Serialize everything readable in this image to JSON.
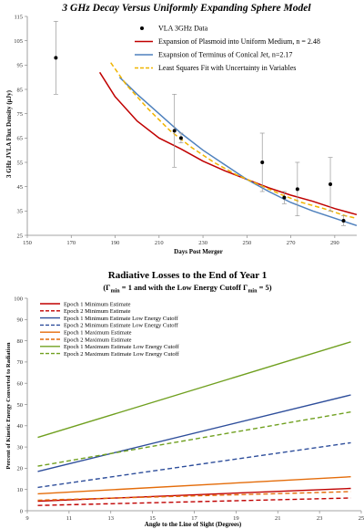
{
  "chart_data": [
    {
      "type": "scatter",
      "title": "3 GHz Decay Versus Uniformly Expanding Sphere Model",
      "xlabel": "Days Post Merger",
      "ylabel": "3 GHz JVLA Flux Density (μJy)",
      "xlim": [
        150,
        300
      ],
      "ylim": [
        25,
        115
      ],
      "xticks": [
        150,
        170,
        190,
        210,
        230,
        250,
        270,
        290
      ],
      "yticks": [
        25,
        35,
        45,
        55,
        65,
        75,
        85,
        95,
        105,
        115
      ],
      "grid": false,
      "legend_position": "top-right",
      "data_series": {
        "name": "VLA 3GHz Data",
        "points": [
          {
            "x": 163,
            "y": 98,
            "err": 15
          },
          {
            "x": 217,
            "y": 68,
            "err": 15
          },
          {
            "x": 220,
            "y": 65,
            "err": 2
          },
          {
            "x": 257,
            "y": 55,
            "err": 12
          },
          {
            "x": 267,
            "y": 40.5,
            "err": 2.5
          },
          {
            "x": 273,
            "y": 44,
            "err": 11
          },
          {
            "x": 288,
            "y": 46,
            "err": 11
          },
          {
            "x": 294,
            "y": 31,
            "err": 2
          }
        ],
        "color": "#000000"
      },
      "series": [
        {
          "name": "Expansion of Plasmoid into Uniform Medium, n  = 2.48",
          "color": "#c00000",
          "dash": "solid",
          "x": [
            183,
            190,
            200,
            210,
            220,
            230,
            240,
            250,
            260,
            270,
            280,
            290,
            300
          ],
          "y": [
            92,
            82,
            72,
            65,
            60.5,
            55.5,
            51.5,
            48,
            44.5,
            41.5,
            39,
            36,
            33.5
          ]
        },
        {
          "name": "Exapnsion of Terminus of Conical Jet, n=2.17",
          "color": "#4f81bd",
          "dash": "solid",
          "x": [
            192,
            200,
            210,
            220,
            230,
            240,
            250,
            260,
            270,
            280,
            290,
            300
          ],
          "y": [
            90,
            83,
            75,
            67,
            60,
            54,
            48,
            43,
            38.5,
            35,
            32,
            29
          ]
        },
        {
          "name": "Least Squares Fit with Uncertainty in Variables",
          "color": "#f0b400",
          "dash": "dashed",
          "x": [
            188,
            195,
            205,
            215,
            225,
            235,
            245,
            255,
            265,
            275,
            285,
            295,
            300
          ],
          "y": [
            96,
            87,
            77,
            68,
            61,
            55,
            50,
            46,
            42,
            38.5,
            36,
            33,
            32
          ]
        }
      ]
    },
    {
      "type": "line",
      "title": "Radiative Losses to the End of Year 1",
      "subtitle_parts": {
        "a": "(Γ",
        "b": "min",
        "c": " = 1 and with the Low Energy Cutoff Γ",
        "d": "min",
        "e": " = 5)"
      },
      "xlabel": "Angle to the Line of Sight (Degrees)",
      "ylabel": "Percent of Kinetic Energy Converted to Radiation",
      "xlim": [
        9,
        25
      ],
      "ylim": [
        0,
        100
      ],
      "xticks": [
        9,
        11,
        13,
        15,
        17,
        19,
        21,
        23,
        25
      ],
      "yticks": [
        0,
        10,
        20,
        30,
        40,
        50,
        60,
        70,
        80,
        90,
        100
      ],
      "grid": false,
      "legend_position": "top-left",
      "x": [
        9.5,
        24.5
      ],
      "series": [
        {
          "name": "Epoch 1 Minimum Estimate",
          "color": "#c00000",
          "dash": "solid",
          "y": [
            4.5,
            10.5
          ]
        },
        {
          "name": "Epoch 2 Minimum  Estimate",
          "color": "#c00000",
          "dash": "dashed",
          "y": [
            2.5,
            6
          ]
        },
        {
          "name": "Epoch 1 Minimum Estimate Low Energy Cutoff",
          "color": "#2e4e9b",
          "dash": "solid",
          "y": [
            18.5,
            54.5
          ]
        },
        {
          "name": "Epoch 2 Minimum Estimate Low Energy Cutoff",
          "color": "#2e4e9b",
          "dash": "dashed",
          "y": [
            11,
            32
          ]
        },
        {
          "name": "Epoch 1 Maximum Estimate",
          "color": "#e46c0a",
          "dash": "solid",
          "y": [
            8,
            16
          ]
        },
        {
          "name": "Epoch 2 Maximum Estimate",
          "color": "#e46c0a",
          "dash": "dashed",
          "y": [
            5,
            9
          ]
        },
        {
          "name": "Epoch 1 Maximum Estimate Low Energy Cutoff",
          "color": "#70a020",
          "dash": "solid",
          "y": [
            34.5,
            79.5
          ]
        },
        {
          "name": "Epoch 2 Maximum Estimate Low Energy Cutoff",
          "color": "#70a020",
          "dash": "dashed",
          "y": [
            21,
            46.5
          ]
        }
      ]
    }
  ]
}
